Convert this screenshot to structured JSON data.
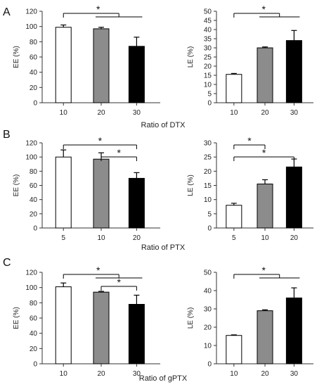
{
  "figure": {
    "rows": [
      {
        "panel_label": "A",
        "xlabel": "Ratio of DTX"
      },
      {
        "panel_label": "B",
        "xlabel": "Ratio of PTX"
      },
      {
        "panel_label": "C",
        "xlabel": "Ratio of gPTX"
      }
    ]
  },
  "chart_data": [
    {
      "type": "bar",
      "panel": "A-left",
      "categories": [
        "10",
        "20",
        "30"
      ],
      "values": [
        99,
        97,
        74
      ],
      "errors": [
        3,
        2,
        12
      ],
      "colors": [
        "#ffffff",
        "#8c8c8c",
        "#000000"
      ],
      "ylabel": "EE (%)",
      "xlabel": "",
      "ylim": [
        0,
        120
      ],
      "yticks": [
        0,
        20,
        40,
        60,
        80,
        100,
        120
      ],
      "significance": [
        {
          "from": 0,
          "to": [
            1,
            2
          ],
          "label": "*"
        }
      ]
    },
    {
      "type": "bar",
      "panel": "A-right",
      "categories": [
        "10",
        "20",
        "30"
      ],
      "values": [
        15.5,
        30,
        34
      ],
      "errors": [
        0.5,
        0.5,
        5.5
      ],
      "colors": [
        "#ffffff",
        "#8c8c8c",
        "#000000"
      ],
      "ylabel": "LE (%)",
      "xlabel": "",
      "ylim": [
        0,
        50
      ],
      "yticks": [
        0,
        5,
        10,
        15,
        20,
        25,
        30,
        35,
        40,
        45,
        50
      ],
      "significance": [
        {
          "from": 0,
          "to": [
            1,
            2
          ],
          "label": "*"
        }
      ]
    },
    {
      "type": "bar",
      "panel": "B-left",
      "categories": [
        "5",
        "10",
        "20"
      ],
      "values": [
        100,
        97,
        70
      ],
      "errors": [
        10,
        9,
        8
      ],
      "colors": [
        "#ffffff",
        "#8c8c8c",
        "#000000"
      ],
      "ylabel": "EE (%)",
      "xlabel": "",
      "ylim": [
        0,
        120
      ],
      "yticks": [
        0,
        20,
        40,
        60,
        80,
        100,
        120
      ],
      "significance": [
        {
          "from": 0,
          "to": 2,
          "label": "*"
        },
        {
          "from": 1,
          "to": 2,
          "label": "*"
        }
      ]
    },
    {
      "type": "bar",
      "panel": "B-right",
      "categories": [
        "5",
        "10",
        "20"
      ],
      "values": [
        8,
        15.5,
        21.5
      ],
      "errors": [
        0.7,
        1.5,
        2.8
      ],
      "colors": [
        "#ffffff",
        "#8c8c8c",
        "#000000"
      ],
      "ylabel": "LE (%)",
      "xlabel": "",
      "ylim": [
        0,
        30
      ],
      "yticks": [
        0,
        5,
        10,
        15,
        20,
        25,
        30
      ],
      "significance": [
        {
          "from": 0,
          "to": 1,
          "label": "*"
        },
        {
          "from": 0,
          "to": 2,
          "label": "*"
        }
      ]
    },
    {
      "type": "bar",
      "panel": "C-left",
      "categories": [
        "10",
        "20",
        "30"
      ],
      "values": [
        101,
        94,
        78
      ],
      "errors": [
        5,
        1,
        12
      ],
      "colors": [
        "#ffffff",
        "#8c8c8c",
        "#000000"
      ],
      "ylabel": "EE (%)",
      "xlabel": "",
      "ylim": [
        0,
        120
      ],
      "yticks": [
        0,
        20,
        40,
        60,
        80,
        100,
        120
      ],
      "significance": [
        {
          "from": 0,
          "to": [
            1,
            2
          ],
          "label": "*"
        },
        {
          "from": 1,
          "to": 2,
          "label": "*"
        }
      ]
    },
    {
      "type": "bar",
      "panel": "C-right",
      "categories": [
        "10",
        "20",
        "30"
      ],
      "values": [
        15.5,
        29,
        36
      ],
      "errors": [
        0.3,
        0.5,
        5.5
      ],
      "colors": [
        "#ffffff",
        "#8c8c8c",
        "#000000"
      ],
      "ylabel": "LE (%)",
      "xlabel": "",
      "ylim": [
        0,
        50
      ],
      "yticks": [
        0,
        10,
        20,
        30,
        40,
        50
      ],
      "significance": [
        {
          "from": 0,
          "to": [
            1,
            2
          ],
          "label": "*"
        }
      ]
    }
  ]
}
